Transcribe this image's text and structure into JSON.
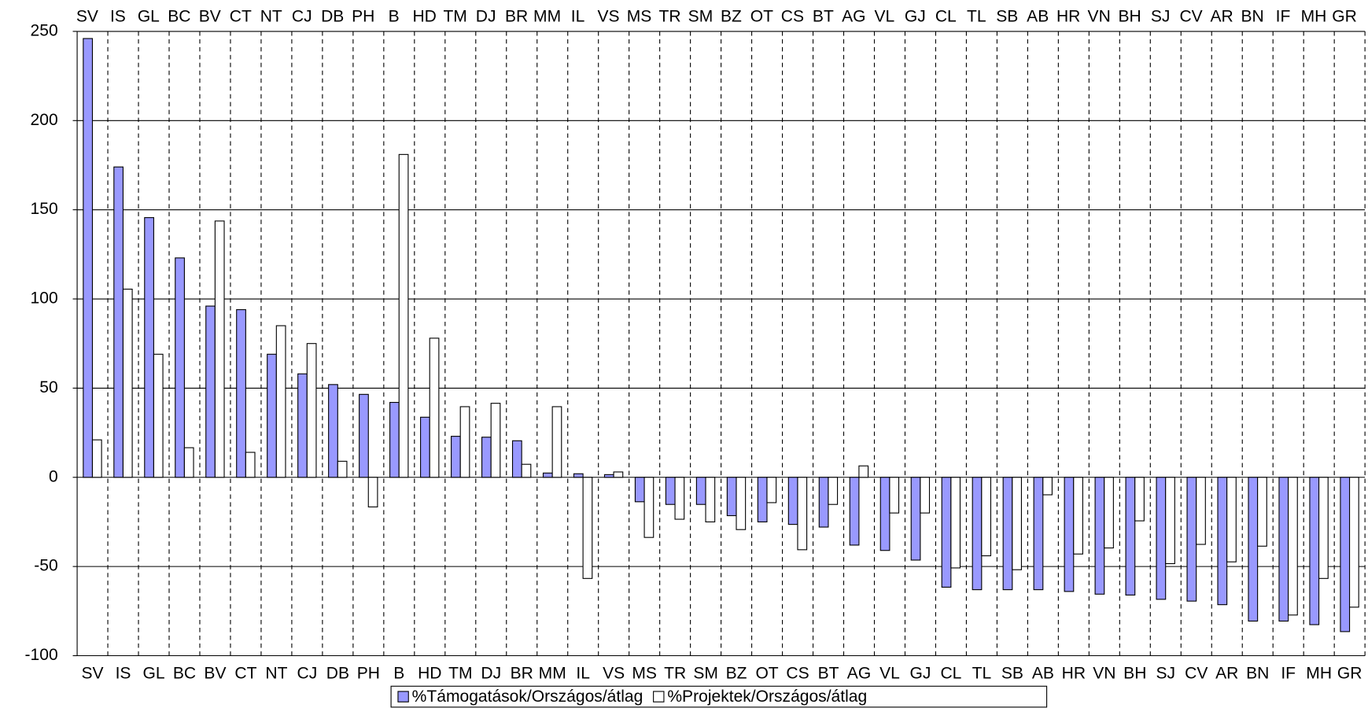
{
  "chart_data": {
    "type": "bar",
    "categories": [
      "SV",
      "IS",
      "GL",
      "BC",
      "BV",
      "CT",
      "NT",
      "CJ",
      "DB",
      "PH",
      "B",
      "HD",
      "TM",
      "DJ",
      "BR",
      "MM",
      "IL",
      "VS",
      "MS",
      "TR",
      "SM",
      "BZ",
      "OT",
      "CS",
      "BT",
      "AG",
      "VL",
      "GJ",
      "CL",
      "TL",
      "SB",
      "AB",
      "HR",
      "VN",
      "BH",
      "SJ",
      "CV",
      "AR",
      "BN",
      "IF",
      "MH",
      "GR"
    ],
    "series": [
      {
        "name": "%Támogatások/Országos/átlag",
        "color": "#9999ff",
        "values": [
          246,
          174,
          145.6,
          123,
          96,
          94,
          69,
          58,
          52,
          46.5,
          42,
          33.7,
          23,
          22.5,
          20.5,
          2.4,
          2,
          1.5,
          -13.7,
          -15.2,
          -15.2,
          -21.5,
          -25,
          -26.4,
          -27.9,
          -38,
          -41,
          -46.4,
          -61.6,
          -63,
          -63,
          -63,
          -64,
          -65.5,
          -66,
          -68.4,
          -69.4,
          -71.4,
          -80.6,
          -80.6,
          -82.6,
          -86.5
        ]
      },
      {
        "name": "%Projektek/Országos/átlag",
        "color": "#ffffff",
        "values": [
          21,
          105.5,
          69,
          16.6,
          143.7,
          14,
          85,
          75,
          9,
          -16.6,
          181,
          78,
          39.6,
          41.5,
          7.3,
          39.6,
          -56.7,
          3,
          -33.7,
          -23.5,
          -25,
          -29.3,
          -14.2,
          -40.6,
          -15.2,
          6.4,
          -20,
          -20,
          -50.8,
          -44,
          -51.8,
          -9.8,
          -43,
          -39.6,
          -24.4,
          -48.4,
          -37.6,
          -47.4,
          -38.6,
          -77.2,
          -56.7,
          -72.8
        ]
      }
    ],
    "ylim": [
      -100,
      250
    ],
    "yticks": [
      -100,
      -50,
      0,
      50,
      100,
      150,
      200,
      250
    ],
    "grid": true
  }
}
